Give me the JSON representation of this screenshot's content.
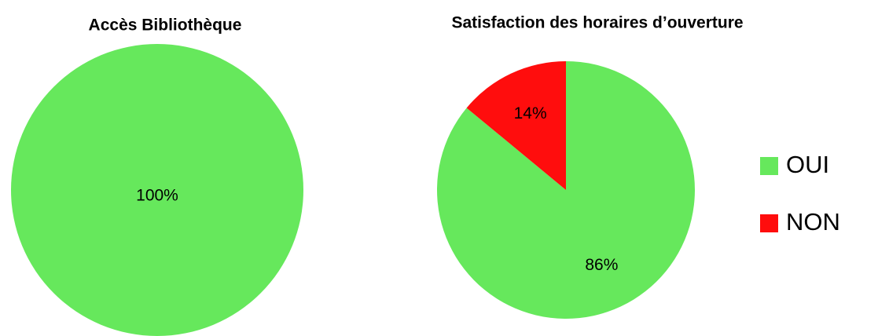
{
  "chart_data": [
    {
      "type": "pie",
      "title": "Accès Bibliothèque",
      "categories": [
        "OUI"
      ],
      "values": [
        100
      ],
      "value_labels": [
        "100%"
      ],
      "colors": [
        "#66e85c"
      ]
    },
    {
      "type": "pie",
      "title": "Satisfaction des horaires d’ouverture",
      "categories": [
        "OUI",
        "NON"
      ],
      "values": [
        86,
        14
      ],
      "value_labels": [
        "86%",
        "14%"
      ],
      "colors": [
        "#66e85c",
        "#ff0d0d"
      ],
      "legend": "right"
    }
  ]
}
